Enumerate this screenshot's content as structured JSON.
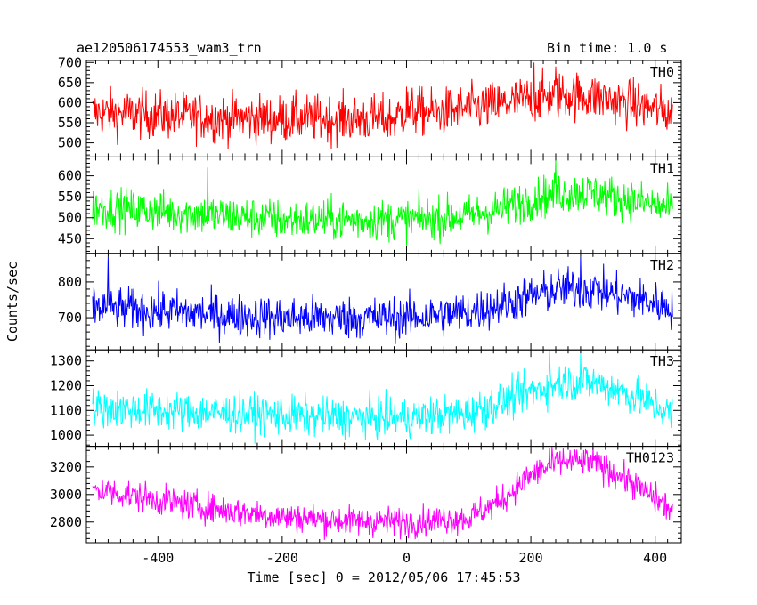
{
  "header": {
    "left_title": "ae120506174553_wam3_trn",
    "right_title": "Bin time: 1.0 s"
  },
  "chart_data": {
    "type": "line",
    "title": "ae120506174553_wam3_trn",
    "subtitle": "Bin time: 1.0 s",
    "xlabel": "Time [sec] 0 = 2012/05/06 17:45:53",
    "ylabel": "Counts/sec",
    "xlim": [
      -515,
      442
    ],
    "x_start": -505,
    "x_end": 428,
    "bin_time": 1.0,
    "x_ticks": [
      -400,
      -200,
      0,
      200,
      400
    ],
    "panels": [
      {
        "name": "TH0",
        "color": "#ff0000",
        "ylim": [
          465,
          705
        ],
        "y_ticks": [
          500,
          550,
          600,
          650,
          700
        ],
        "trend": [
          [
            -505,
            575
          ],
          [
            -400,
            570
          ],
          [
            -300,
            562
          ],
          [
            -200,
            560
          ],
          [
            -100,
            560
          ],
          [
            -20,
            560
          ],
          [
            0,
            580
          ],
          [
            50,
            575
          ],
          [
            100,
            585
          ],
          [
            150,
            595
          ],
          [
            200,
            610
          ],
          [
            250,
            620
          ],
          [
            300,
            615
          ],
          [
            350,
            600
          ],
          [
            400,
            585
          ],
          [
            428,
            575
          ]
        ],
        "noise": 30,
        "spikes": [
          [
            0,
            640
          ],
          [
            205,
            700
          ],
          [
            240,
            690
          ]
        ]
      },
      {
        "name": "TH1",
        "color": "#00ff00",
        "ylim": [
          415,
          645
        ],
        "y_ticks": [
          450,
          500,
          550,
          600
        ],
        "trend": [
          [
            -505,
            525
          ],
          [
            -400,
            515
          ],
          [
            -300,
            505
          ],
          [
            -200,
            495
          ],
          [
            -100,
            495
          ],
          [
            0,
            495
          ],
          [
            100,
            505
          ],
          [
            150,
            520
          ],
          [
            200,
            545
          ],
          [
            250,
            560
          ],
          [
            300,
            560
          ],
          [
            350,
            545
          ],
          [
            400,
            530
          ],
          [
            428,
            520
          ]
        ],
        "noise": 25,
        "spikes": [
          [
            -320,
            620
          ],
          [
            240,
            640
          ]
        ]
      },
      {
        "name": "TH2",
        "color": "#0000ff",
        "ylim": [
          610,
          880
        ],
        "y_ticks": [
          700,
          800
        ],
        "trend": [
          [
            -505,
            730
          ],
          [
            -400,
            720
          ],
          [
            -300,
            708
          ],
          [
            -200,
            700
          ],
          [
            -100,
            700
          ],
          [
            0,
            700
          ],
          [
            100,
            715
          ],
          [
            150,
            735
          ],
          [
            200,
            760
          ],
          [
            250,
            780
          ],
          [
            300,
            780
          ],
          [
            350,
            760
          ],
          [
            400,
            740
          ],
          [
            428,
            730
          ]
        ],
        "noise": 30,
        "spikes": [
          [
            -480,
            870
          ],
          [
            280,
            870
          ]
        ]
      },
      {
        "name": "TH3",
        "color": "#00ffff",
        "ylim": [
          955,
          1345
        ],
        "y_ticks": [
          1000,
          1100,
          1200,
          1300
        ],
        "trend": [
          [
            -505,
            1110
          ],
          [
            -400,
            1100
          ],
          [
            -300,
            1090
          ],
          [
            -200,
            1080
          ],
          [
            -100,
            1070
          ],
          [
            0,
            1070
          ],
          [
            100,
            1090
          ],
          [
            150,
            1130
          ],
          [
            200,
            1175
          ],
          [
            250,
            1215
          ],
          [
            300,
            1215
          ],
          [
            350,
            1175
          ],
          [
            400,
            1120
          ],
          [
            428,
            1085
          ]
        ],
        "noise": 40,
        "spikes": [
          [
            230,
            1340
          ],
          [
            280,
            1330
          ]
        ]
      },
      {
        "name": "TH0123",
        "color": "#ff00ff",
        "ylim": [
          2650,
          3350
        ],
        "y_ticks": [
          2800,
          3000,
          3200
        ],
        "trend": [
          [
            -505,
            3040
          ],
          [
            -400,
            2960
          ],
          [
            -300,
            2890
          ],
          [
            -200,
            2840
          ],
          [
            -100,
            2810
          ],
          [
            0,
            2800
          ],
          [
            100,
            2830
          ],
          [
            150,
            2950
          ],
          [
            200,
            3140
          ],
          [
            250,
            3240
          ],
          [
            300,
            3230
          ],
          [
            350,
            3120
          ],
          [
            400,
            2970
          ],
          [
            428,
            2880
          ]
        ],
        "noise": 55,
        "spikes": [
          [
            230,
            3340
          ],
          [
            290,
            3320
          ]
        ]
      }
    ],
    "grid": false,
    "legend": "panel labels top-right"
  }
}
